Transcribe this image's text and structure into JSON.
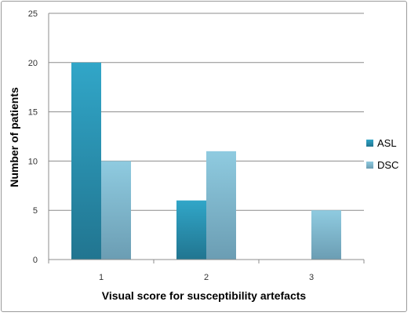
{
  "chart_data": {
    "type": "bar",
    "title": "",
    "xlabel": "Visual score for susceptibility artefacts",
    "ylabel": "Number of patients",
    "categories": [
      "1",
      "2",
      "3"
    ],
    "ylim": [
      0,
      25
    ],
    "yticks": [
      0,
      5,
      10,
      15,
      20,
      25
    ],
    "grid": true,
    "legend": "right",
    "series": [
      {
        "name": "ASL",
        "values": [
          20,
          6,
          0
        ],
        "color": "#2e8fae"
      },
      {
        "name": "DSC",
        "values": [
          10,
          11,
          5
        ],
        "color": "#8ac2d7"
      }
    ]
  }
}
